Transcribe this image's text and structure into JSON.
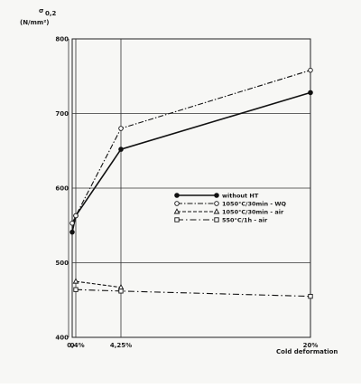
{
  "chart_data": {
    "type": "line",
    "title": "",
    "ylabel_symbol": "σ",
    "ylabel_subscript": "0,2",
    "yunit": "(N/mm²)",
    "xlabel": "Cold deformation",
    "ylim": [
      400,
      800
    ],
    "yticks": [
      400,
      500,
      600,
      700,
      800
    ],
    "xlim": [
      0,
      20
    ],
    "xticks": [
      {
        "value": 0,
        "label": "0"
      },
      {
        "value": 0.4,
        "label": "0,4%"
      },
      {
        "value": 4.25,
        "label": "4,25%"
      },
      {
        "value": 20,
        "label": "20%"
      }
    ],
    "grid": true,
    "legend_position": "center-right",
    "series": [
      {
        "name": "without HT",
        "style": "solid",
        "marker": "filled-circle",
        "x": [
          0,
          0.4,
          4.25,
          20
        ],
        "y": [
          541,
          563,
          652,
          728
        ]
      },
      {
        "name": "1050°C/30min - WQ",
        "style": "dash-dot",
        "marker": "open-circle",
        "x": [
          0,
          0.4,
          4.25,
          20
        ],
        "y": [
          553,
          563,
          680,
          758
        ]
      },
      {
        "name": "1050°C/30min - air",
        "style": "dashed",
        "marker": "open-triangle",
        "x": [
          0.4,
          4.25
        ],
        "y": [
          475,
          467
        ]
      },
      {
        "name": "550°C/1h - air",
        "style": "dash-dot-long",
        "marker": "open-square",
        "x": [
          0.4,
          4.25,
          20
        ],
        "y": [
          464,
          462,
          455
        ]
      }
    ]
  }
}
